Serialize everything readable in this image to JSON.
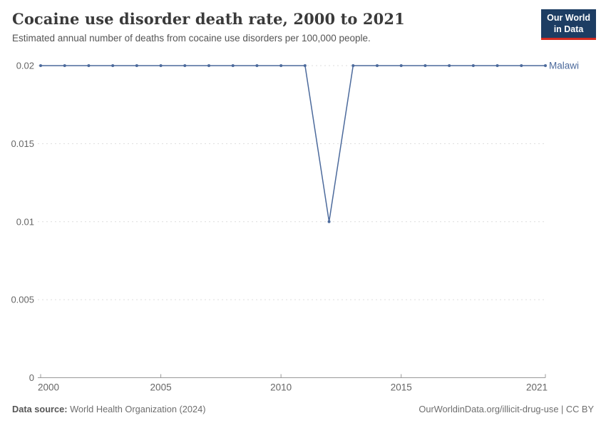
{
  "header": {
    "title": "Cocaine use disorder death rate, 2000 to 2021",
    "subtitle": "Estimated annual number of deaths from cocaine use disorders per 100,000 people.",
    "logo": {
      "line1": "Our World",
      "line2": "in Data",
      "bg_color": "#1d3d63",
      "accent_color": "#d42b21"
    }
  },
  "chart_data": {
    "type": "line",
    "title": "Cocaine use disorder death rate, 2000 to 2021",
    "xlabel": "",
    "ylabel": "",
    "xlim": [
      2000,
      2021
    ],
    "ylim": [
      0,
      0.02
    ],
    "grid": true,
    "grid_style": "dashed-horizontal",
    "grid_color": "#dddddd",
    "axis_color": "#999999",
    "tick_label_color": "#666666",
    "legend_position": "entity-label-at-line-end",
    "x_ticks": {
      "values": [
        2000,
        2005,
        2010,
        2015,
        2021
      ],
      "labels": [
        "2000",
        "2005",
        "2010",
        "2015",
        "2021"
      ]
    },
    "y_ticks": {
      "values": [
        0,
        0.005,
        0.01,
        0.015,
        0.02
      ],
      "labels": [
        "0",
        "0.005",
        "0.01",
        "0.015",
        "0.02"
      ]
    },
    "series": [
      {
        "name": "Malawi",
        "color": "#4C6A9C",
        "x": [
          2000,
          2001,
          2002,
          2003,
          2004,
          2005,
          2006,
          2007,
          2008,
          2009,
          2010,
          2011,
          2012,
          2013,
          2014,
          2015,
          2016,
          2017,
          2018,
          2019,
          2020,
          2021
        ],
        "values": [
          0.02,
          0.02,
          0.02,
          0.02,
          0.02,
          0.02,
          0.02,
          0.02,
          0.02,
          0.02,
          0.02,
          0.02,
          0.01,
          0.02,
          0.02,
          0.02,
          0.02,
          0.02,
          0.02,
          0.02,
          0.02,
          0.02
        ]
      }
    ]
  },
  "footer": {
    "source_label": "Data source:",
    "source_text": " World Health Organization (2024)",
    "credit": "OurWorldinData.org/illicit-drug-use | CC BY"
  }
}
